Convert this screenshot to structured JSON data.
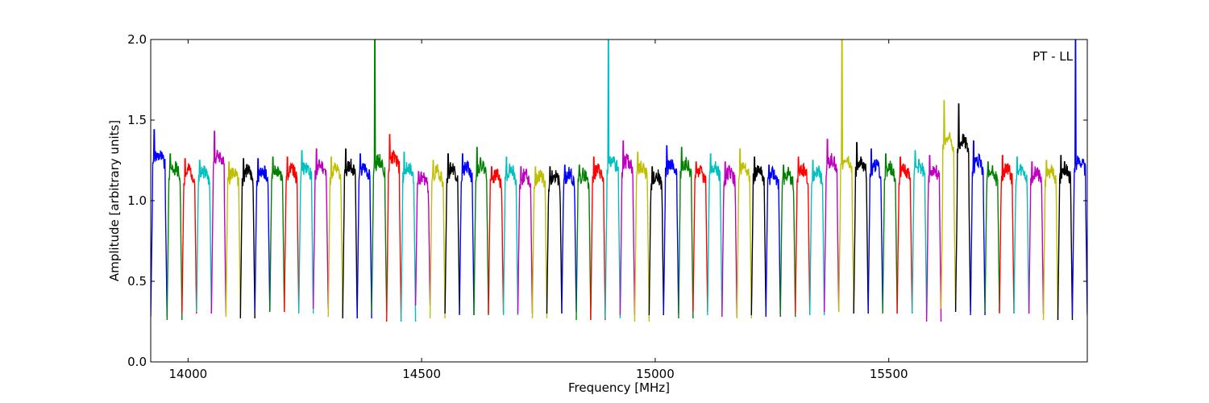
{
  "chart_data": {
    "type": "line",
    "xlabel": "Frequency [MHz]",
    "ylabel": "Amplitude [arbitrary units]",
    "annotation": "PT - LL",
    "xlim": [
      13920,
      15925
    ],
    "ylim": [
      0.0,
      2.0
    ],
    "x_ticks": [
      "14000",
      "14500",
      "15000",
      "15500"
    ],
    "y_ticks": [
      "0.0",
      "0.5",
      "1.0",
      "1.5",
      "2.0"
    ],
    "grid": false,
    "legend": "none",
    "color_cycle": [
      "#0000ff",
      "#008000",
      "#ff0000",
      "#00bfbf",
      "#bf00bf",
      "#bfbf00",
      "#000000"
    ],
    "channel_spacing_mhz": 31.25,
    "series": [
      {
        "start": 13920,
        "end": 13955,
        "peak": 1.44,
        "dip": 0.28,
        "color": "#0000ff"
      },
      {
        "start": 13955,
        "end": 13987,
        "peak": 1.29,
        "dip": 0.26,
        "color": "#008000"
      },
      {
        "start": 13987,
        "end": 14018,
        "peak": 1.26,
        "dip": 0.3,
        "color": "#ff0000"
      },
      {
        "start": 14018,
        "end": 14050,
        "peak": 1.25,
        "dip": 0.31,
        "color": "#00bfbf"
      },
      {
        "start": 14050,
        "end": 14081,
        "peak": 1.43,
        "dip": 0.3,
        "color": "#bf00bf"
      },
      {
        "start": 14081,
        "end": 14112,
        "peak": 1.24,
        "dip": 0.28,
        "color": "#bfbf00"
      },
      {
        "start": 14112,
        "end": 14143,
        "peak": 1.26,
        "dip": 0.27,
        "color": "#000000"
      },
      {
        "start": 14143,
        "end": 14175,
        "peak": 1.26,
        "dip": 0.31,
        "color": "#0000ff"
      },
      {
        "start": 14175,
        "end": 14206,
        "peak": 1.27,
        "dip": 0.31,
        "color": "#008000"
      },
      {
        "start": 14206,
        "end": 14237,
        "peak": 1.27,
        "dip": 0.31,
        "color": "#ff0000"
      },
      {
        "start": 14237,
        "end": 14268,
        "peak": 1.31,
        "dip": 0.3,
        "color": "#00bfbf"
      },
      {
        "start": 14268,
        "end": 14300,
        "peak": 1.32,
        "dip": 0.33,
        "color": "#bf00bf"
      },
      {
        "start": 14300,
        "end": 14331,
        "peak": 1.27,
        "dip": 0.28,
        "color": "#bfbf00"
      },
      {
        "start": 14331,
        "end": 14362,
        "peak": 1.32,
        "dip": 0.27,
        "color": "#000000"
      },
      {
        "start": 14362,
        "end": 14393,
        "peak": 1.29,
        "dip": 0.27,
        "color": "#0000ff"
      },
      {
        "start": 14393,
        "end": 14425,
        "peak": 2.0,
        "dip": 0.31,
        "color": "#008000"
      },
      {
        "start": 14425,
        "end": 14456,
        "peak": 1.41,
        "dip": 0.25,
        "color": "#ff0000"
      },
      {
        "start": 14456,
        "end": 14487,
        "peak": 1.3,
        "dip": 0.25,
        "color": "#00bfbf"
      },
      {
        "start": 14487,
        "end": 14518,
        "peak": 1.18,
        "dip": 0.35,
        "color": "#bf00bf"
      },
      {
        "start": 14518,
        "end": 14550,
        "peak": 1.25,
        "dip": 0.27,
        "color": "#bfbf00"
      },
      {
        "start": 14550,
        "end": 14581,
        "peak": 1.29,
        "dip": 0.3,
        "color": "#000000"
      },
      {
        "start": 14581,
        "end": 14612,
        "peak": 1.29,
        "dip": 0.29,
        "color": "#0000ff"
      },
      {
        "start": 14612,
        "end": 14643,
        "peak": 1.33,
        "dip": 0.29,
        "color": "#008000"
      },
      {
        "start": 14643,
        "end": 14675,
        "peak": 1.21,
        "dip": 0.3,
        "color": "#ff0000"
      },
      {
        "start": 14675,
        "end": 14706,
        "peak": 1.27,
        "dip": 0.29,
        "color": "#00bfbf"
      },
      {
        "start": 14706,
        "end": 14737,
        "peak": 1.21,
        "dip": 0.3,
        "color": "#bf00bf"
      },
      {
        "start": 14737,
        "end": 14768,
        "peak": 1.21,
        "dip": 0.27,
        "color": "#bfbf00"
      },
      {
        "start": 14768,
        "end": 14800,
        "peak": 1.21,
        "dip": 0.3,
        "color": "#000000"
      },
      {
        "start": 14800,
        "end": 14831,
        "peak": 1.22,
        "dip": 0.31,
        "color": "#0000ff"
      },
      {
        "start": 14831,
        "end": 14862,
        "peak": 1.22,
        "dip": 0.26,
        "color": "#008000"
      },
      {
        "start": 14862,
        "end": 14893,
        "peak": 1.27,
        "dip": 0.26,
        "color": "#ff0000"
      },
      {
        "start": 14893,
        "end": 14925,
        "peak": 2.0,
        "dip": 0.27,
        "color": "#00bfbf"
      },
      {
        "start": 14925,
        "end": 14956,
        "peak": 1.37,
        "dip": 0.29,
        "color": "#bf00bf"
      },
      {
        "start": 14956,
        "end": 14987,
        "peak": 1.3,
        "dip": 0.25,
        "color": "#bfbf00"
      },
      {
        "start": 14987,
        "end": 15018,
        "peak": 1.21,
        "dip": 0.29,
        "color": "#000000"
      },
      {
        "start": 15018,
        "end": 15050,
        "peak": 1.34,
        "dip": 0.3,
        "color": "#0000ff"
      },
      {
        "start": 15050,
        "end": 15081,
        "peak": 1.33,
        "dip": 0.27,
        "color": "#008000"
      },
      {
        "start": 15081,
        "end": 15112,
        "peak": 1.24,
        "dip": 0.31,
        "color": "#ff0000"
      },
      {
        "start": 15112,
        "end": 15143,
        "peak": 1.29,
        "dip": 0.29,
        "color": "#00bfbf"
      },
      {
        "start": 15143,
        "end": 15175,
        "peak": 1.24,
        "dip": 0.28,
        "color": "#bf00bf"
      },
      {
        "start": 15175,
        "end": 15206,
        "peak": 1.32,
        "dip": 0.27,
        "color": "#bfbf00"
      },
      {
        "start": 15206,
        "end": 15237,
        "peak": 1.27,
        "dip": 0.29,
        "color": "#000000"
      },
      {
        "start": 15237,
        "end": 15268,
        "peak": 1.22,
        "dip": 0.28,
        "color": "#0000ff"
      },
      {
        "start": 15268,
        "end": 15300,
        "peak": 1.22,
        "dip": 0.28,
        "color": "#008000"
      },
      {
        "start": 15300,
        "end": 15331,
        "peak": 1.27,
        "dip": 0.3,
        "color": "#ff0000"
      },
      {
        "start": 15331,
        "end": 15362,
        "peak": 1.25,
        "dip": 0.29,
        "color": "#00bfbf"
      },
      {
        "start": 15362,
        "end": 15393,
        "peak": 1.38,
        "dip": 0.31,
        "color": "#bf00bf"
      },
      {
        "start": 15393,
        "end": 15425,
        "peak": 2.0,
        "dip": 0.31,
        "color": "#bfbf00"
      },
      {
        "start": 15425,
        "end": 15456,
        "peak": 1.36,
        "dip": 0.3,
        "color": "#000000"
      },
      {
        "start": 15456,
        "end": 15487,
        "peak": 1.32,
        "dip": 0.31,
        "color": "#0000ff"
      },
      {
        "start": 15487,
        "end": 15518,
        "peak": 1.29,
        "dip": 0.3,
        "color": "#008000"
      },
      {
        "start": 15518,
        "end": 15550,
        "peak": 1.27,
        "dip": 0.3,
        "color": "#ff0000"
      },
      {
        "start": 15550,
        "end": 15581,
        "peak": 1.31,
        "dip": 0.3,
        "color": "#00bfbf"
      },
      {
        "start": 15581,
        "end": 15612,
        "peak": 1.28,
        "dip": 0.25,
        "color": "#bf00bf"
      },
      {
        "start": 15612,
        "end": 15643,
        "peak": 1.62,
        "dip": 0.33,
        "color": "#bfbf00"
      },
      {
        "start": 15643,
        "end": 15675,
        "peak": 1.6,
        "dip": 0.31,
        "color": "#000000"
      },
      {
        "start": 15675,
        "end": 15706,
        "peak": 1.37,
        "dip": 0.29,
        "color": "#0000ff"
      },
      {
        "start": 15706,
        "end": 15737,
        "peak": 1.24,
        "dip": 0.31,
        "color": "#008000"
      },
      {
        "start": 15737,
        "end": 15768,
        "peak": 1.28,
        "dip": 0.3,
        "color": "#ff0000"
      },
      {
        "start": 15768,
        "end": 15800,
        "peak": 1.27,
        "dip": 0.3,
        "color": "#00bfbf"
      },
      {
        "start": 15800,
        "end": 15831,
        "peak": 1.24,
        "dip": 0.3,
        "color": "#bf00bf"
      },
      {
        "start": 15831,
        "end": 15862,
        "peak": 1.25,
        "dip": 0.26,
        "color": "#bfbf00"
      },
      {
        "start": 15862,
        "end": 15893,
        "peak": 1.28,
        "dip": 0.26,
        "color": "#000000"
      },
      {
        "start": 15893,
        "end": 15925,
        "peak": 2.0,
        "dip": 0.29,
        "color": "#0000ff"
      }
    ]
  }
}
